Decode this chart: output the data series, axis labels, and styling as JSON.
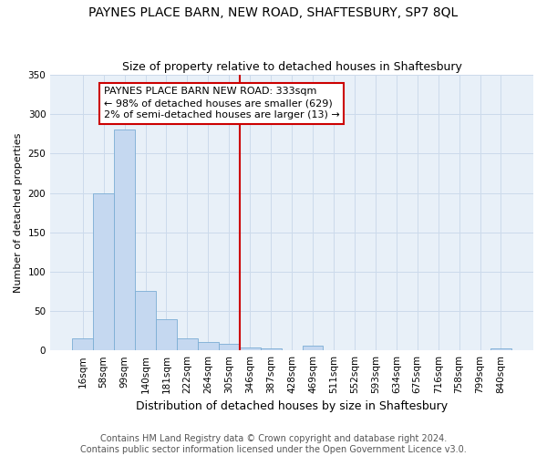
{
  "title": "PAYNES PLACE BARN, NEW ROAD, SHAFTESBURY, SP7 8QL",
  "subtitle": "Size of property relative to detached houses in Shaftesbury",
  "xlabel": "Distribution of detached houses by size in Shaftesbury",
  "ylabel": "Number of detached properties",
  "footer_line1": "Contains HM Land Registry data © Crown copyright and database right 2024.",
  "footer_line2": "Contains public sector information licensed under the Open Government Licence v3.0.",
  "bin_labels": [
    "16sqm",
    "58sqm",
    "99sqm",
    "140sqm",
    "181sqm",
    "222sqm",
    "264sqm",
    "305sqm",
    "346sqm",
    "387sqm",
    "428sqm",
    "469sqm",
    "511sqm",
    "552sqm",
    "593sqm",
    "634sqm",
    "675sqm",
    "716sqm",
    "758sqm",
    "799sqm",
    "840sqm"
  ],
  "bar_values": [
    15,
    200,
    280,
    75,
    40,
    15,
    11,
    8,
    4,
    3,
    0,
    6,
    0,
    0,
    0,
    0,
    0,
    0,
    0,
    0,
    2
  ],
  "bar_color": "#c5d8f0",
  "bar_edge_color": "#7badd4",
  "grid_color": "#ccdaeb",
  "background_color": "#e8f0f8",
  "vline_color": "#cc0000",
  "annotation_line1": "PAYNES PLACE BARN NEW ROAD: 333sqm",
  "annotation_line2": "← 98% of detached houses are smaller (629)",
  "annotation_line3": "2% of semi-detached houses are larger (13) →",
  "annotation_box_color": "#ffffff",
  "annotation_box_edge_color": "#cc0000",
  "annotation_fontsize": 8,
  "ylim": [
    0,
    350
  ],
  "yticks": [
    0,
    50,
    100,
    150,
    200,
    250,
    300,
    350
  ],
  "title_fontsize": 10,
  "subtitle_fontsize": 9,
  "xlabel_fontsize": 9,
  "ylabel_fontsize": 8,
  "tick_fontsize": 7.5,
  "footer_fontsize": 7
}
